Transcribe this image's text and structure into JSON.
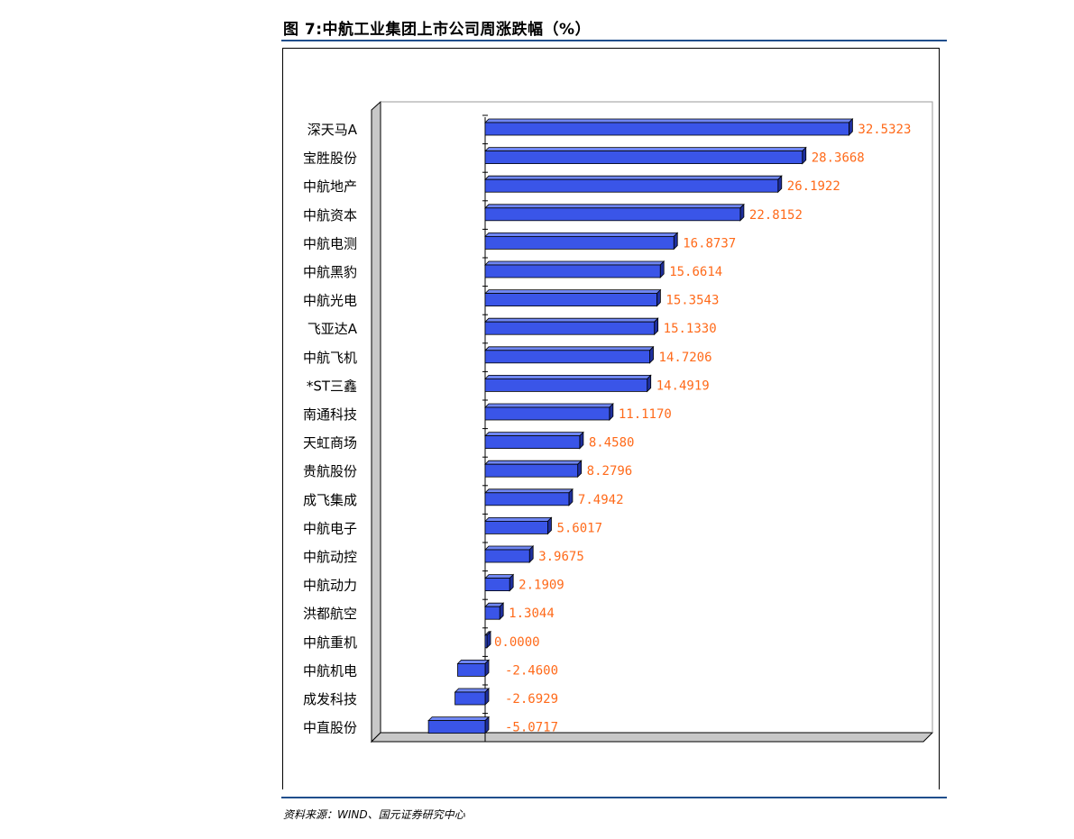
{
  "figure": {
    "title": "图 7:中航工业集团上市公司周涨跌幅（%）",
    "source": "资料来源：WIND、国元证券研究中心"
  },
  "colors": {
    "bar": "#3a55e8",
    "bar_top": "#6f86f2",
    "bar_side": "#1e2f9e",
    "value_label": "#ff6a1a",
    "rule": "#1f4e8c",
    "floor": "#c8c8c8"
  },
  "chart_data": {
    "type": "bar",
    "orientation": "horizontal",
    "title": "",
    "xlabel": "",
    "ylabel": "",
    "categories": [
      "深天马A",
      "宝胜股份",
      "中航地产",
      "中航资本",
      "中航电测",
      "中航黑豹",
      "中航光电",
      "飞亚达A",
      "中航飞机",
      "*ST三鑫",
      "南通科技",
      "天虹商场",
      "贵航股份",
      "成飞集成",
      "中航电子",
      "中航动控",
      "中航动力",
      "洪都航空",
      "中航重机",
      "中航机电",
      "成发科技",
      "中直股份"
    ],
    "values": [
      32.5323,
      28.3668,
      26.1922,
      22.8152,
      16.8737,
      15.6614,
      15.3543,
      15.133,
      14.7206,
      14.4919,
      11.117,
      8.458,
      8.2796,
      7.4942,
      5.6017,
      3.9675,
      2.1909,
      1.3044,
      0.0,
      -2.46,
      -2.6929,
      -5.0717
    ],
    "value_labels": [
      "32.5323",
      "28.3668",
      "26.1922",
      "22.8152",
      "16.8737",
      "15.6614",
      "15.3543",
      "15.1330",
      "14.7206",
      "14.4919",
      "11.1170",
      "8.4580",
      "8.2796",
      "7.4942",
      "5.6017",
      "3.9675",
      "2.1909",
      "1.3044",
      "0.0000",
      "-2.4600",
      "-2.6929",
      "-5.0717"
    ],
    "xlim": [
      -10,
      35
    ],
    "grid": false,
    "legend": "none",
    "style": "3d"
  }
}
